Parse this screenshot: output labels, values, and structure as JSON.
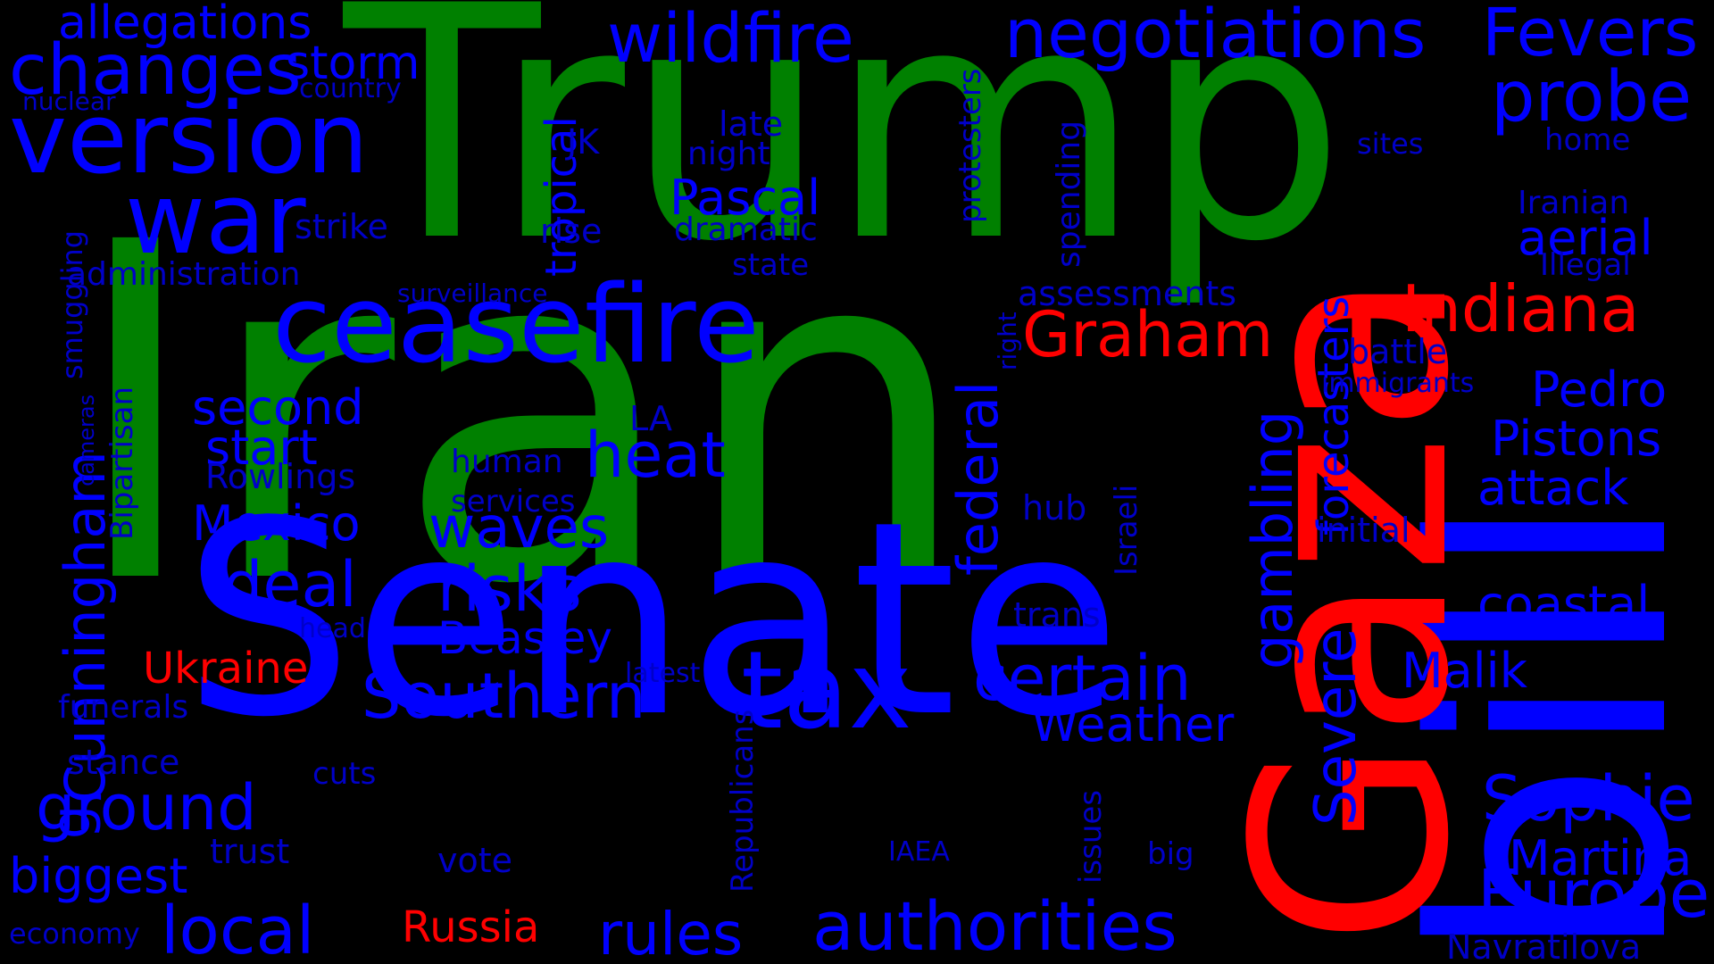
{
  "colors": {
    "background": "#000000",
    "green": "#008000",
    "blue": "#0000FF",
    "red": "#FF0000",
    "blue_small": "#0000C8"
  },
  "words": [
    {
      "text": "Iran",
      "color": "green"
    },
    {
      "text": "Trump",
      "color": "green"
    },
    {
      "text": "Senate",
      "color": "blue"
    },
    {
      "text": "bill",
      "color": "blue"
    },
    {
      "text": "Gaza",
      "color": "red"
    },
    {
      "text": "ceasefire",
      "color": "blue"
    },
    {
      "text": "version",
      "color": "blue"
    },
    {
      "text": "war",
      "color": "blue"
    },
    {
      "text": "negotiations",
      "color": "blue"
    },
    {
      "text": "tax",
      "color": "blue"
    },
    {
      "text": "Fevers",
      "color": "blue"
    },
    {
      "text": "wildfire",
      "color": "blue"
    },
    {
      "text": "changes",
      "color": "blue"
    },
    {
      "text": "authorities",
      "color": "blue"
    },
    {
      "text": "probe",
      "color": "blue"
    },
    {
      "text": "Indiana",
      "color": "red"
    },
    {
      "text": "Graham",
      "color": "red"
    },
    {
      "text": "Southern",
      "color": "blue"
    },
    {
      "text": "certain",
      "color": "blue"
    },
    {
      "text": "ground",
      "color": "blue"
    },
    {
      "text": "Europe",
      "color": "blue"
    },
    {
      "text": "Sophie",
      "color": "blue"
    },
    {
      "text": "heat",
      "color": "blue"
    },
    {
      "text": "risks",
      "color": "blue"
    },
    {
      "text": "deal",
      "color": "blue"
    },
    {
      "text": "waves",
      "color": "blue"
    },
    {
      "text": "local",
      "color": "blue"
    },
    {
      "text": "rules",
      "color": "blue"
    },
    {
      "text": "storm",
      "color": "blue"
    },
    {
      "text": "allegations",
      "color": "blue"
    },
    {
      "text": "Cunningham",
      "color": "blue"
    },
    {
      "text": "Severe",
      "color": "blue"
    },
    {
      "text": "federal",
      "color": "blue"
    },
    {
      "text": "gambling",
      "color": "blue"
    },
    {
      "text": "Pedro",
      "color": "blue"
    },
    {
      "text": "Pistons",
      "color": "blue"
    },
    {
      "text": "attack",
      "color": "blue"
    },
    {
      "text": "coastal",
      "color": "blue"
    },
    {
      "text": "Martina",
      "color": "blue"
    },
    {
      "text": "Malik",
      "color": "blue"
    },
    {
      "text": "aerial",
      "color": "blue"
    },
    {
      "text": "Weather",
      "color": "blue"
    },
    {
      "text": "biggest",
      "color": "blue"
    },
    {
      "text": "Mexico",
      "color": "blue"
    },
    {
      "text": "second",
      "color": "blue"
    },
    {
      "text": "start",
      "color": "blue"
    },
    {
      "text": "Pascal",
      "color": "blue"
    },
    {
      "text": "Beasley",
      "color": "blue"
    },
    {
      "text": "Ukraine",
      "color": "red"
    },
    {
      "text": "Russia",
      "color": "red"
    },
    {
      "text": "tropical",
      "color": "blue"
    },
    {
      "text": "forecasters",
      "color": "blue"
    },
    {
      "text": "assessments",
      "color": "blue"
    },
    {
      "text": "Navratilova",
      "color": "blue"
    },
    {
      "text": "battle",
      "color": "blue"
    },
    {
      "text": "Iranian",
      "color": "blue"
    },
    {
      "text": "Illegal",
      "color": "blue"
    },
    {
      "text": "home",
      "color": "blue"
    },
    {
      "text": "sites",
      "color": "blue"
    },
    {
      "text": "immigrants",
      "color": "blue"
    },
    {
      "text": "initial",
      "color": "blue"
    },
    {
      "text": "strike",
      "color": "blue"
    },
    {
      "text": "administration",
      "color": "blue"
    },
    {
      "text": "JK",
      "color": "blue"
    },
    {
      "text": "rise",
      "color": "blue"
    },
    {
      "text": "dramatic",
      "color": "blue"
    },
    {
      "text": "state",
      "color": "blue"
    },
    {
      "text": "late",
      "color": "blue"
    },
    {
      "text": "night",
      "color": "blue"
    },
    {
      "text": "surveillance",
      "color": "blue"
    },
    {
      "text": "Rowlings",
      "color": "blue"
    },
    {
      "text": "human",
      "color": "blue"
    },
    {
      "text": "services",
      "color": "blue"
    },
    {
      "text": "LA",
      "color": "blue"
    },
    {
      "text": "stance",
      "color": "blue"
    },
    {
      "text": "funerals",
      "color": "blue"
    },
    {
      "text": "cuts",
      "color": "blue"
    },
    {
      "text": "trust",
      "color": "blue"
    },
    {
      "text": "vote",
      "color": "blue"
    },
    {
      "text": "IAEA",
      "color": "blue"
    },
    {
      "text": "big",
      "color": "blue"
    },
    {
      "text": "economy",
      "color": "blue"
    },
    {
      "text": "latest",
      "color": "blue"
    },
    {
      "text": "head",
      "color": "blue"
    },
    {
      "text": "trans",
      "color": "blue"
    },
    {
      "text": "hub",
      "color": "blue"
    },
    {
      "text": "country",
      "color": "blue"
    },
    {
      "text": "nuclear",
      "color": "blue"
    },
    {
      "text": "protesters",
      "color": "blue"
    },
    {
      "text": "spending",
      "color": "blue"
    },
    {
      "text": "right",
      "color": "blue"
    },
    {
      "text": "Israeli",
      "color": "blue"
    },
    {
      "text": "issues",
      "color": "blue"
    },
    {
      "text": "Republicans",
      "color": "blue"
    },
    {
      "text": "smuggling",
      "color": "blue"
    },
    {
      "text": "Bipartisan",
      "color": "blue"
    },
    {
      "text": "cameras",
      "color": "blue"
    },
    {
      "text": "g",
      "color": "blue"
    }
  ]
}
